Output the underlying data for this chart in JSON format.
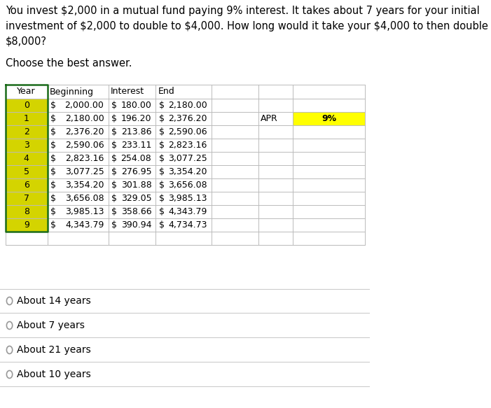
{
  "title": "You invest $2,000 in a mutual fund paying 9% interest. It takes about 7 years for your initial\ninvestment of $2,000 to double to $4,000. How long would it take your $4,000 to then double to\n$8,000?",
  "subtitle": "Choose the best answer.",
  "col_headers": [
    "Year",
    "Beginning",
    "Interest",
    "End",
    "",
    "",
    ""
  ],
  "rows": [
    [
      0,
      "$",
      "2,000.00",
      "$",
      "180.00",
      "$",
      "2,180.00"
    ],
    [
      1,
      "$",
      "2,180.00",
      "$",
      "196.20",
      "$",
      "2,376.20"
    ],
    [
      2,
      "$",
      "2,376.20",
      "$",
      "213.86",
      "$",
      "2,590.06"
    ],
    [
      3,
      "$",
      "2,590.06",
      "$",
      "233.11",
      "$",
      "2,823.16"
    ],
    [
      4,
      "$",
      "2,823.16",
      "$",
      "254.08",
      "$",
      "3,077.25"
    ],
    [
      5,
      "$",
      "3,077.25",
      "$",
      "276.95",
      "$",
      "3,354.20"
    ],
    [
      6,
      "$",
      "3,354.20",
      "$",
      "301.88",
      "$",
      "3,656.08"
    ],
    [
      7,
      "$",
      "3,656.08",
      "$",
      "329.05",
      "$",
      "3,985.13"
    ],
    [
      8,
      "$",
      "3,985.13",
      "$",
      "358.66",
      "$",
      "4,343.79"
    ],
    [
      9,
      "$",
      "4,343.79",
      "$",
      "390.94",
      "$",
      "4,734.73"
    ]
  ],
  "year_col_color": "#d4d400",
  "apr_value_bg": "#ffff00",
  "apr_value": "9%",
  "apr_row": 1,
  "table_border_color": "#1a6b1a",
  "choices": [
    "About 14 years",
    "About 7 years",
    "About 21 years",
    "About 10 years"
  ],
  "bg_color": "#ffffff",
  "text_color": "#000000",
  "table_line_color": "#bbbbbb",
  "title_fontsize": 10.5,
  "subtitle_fontsize": 10.5,
  "table_fontsize": 9.0,
  "choice_fontsize": 10.0
}
